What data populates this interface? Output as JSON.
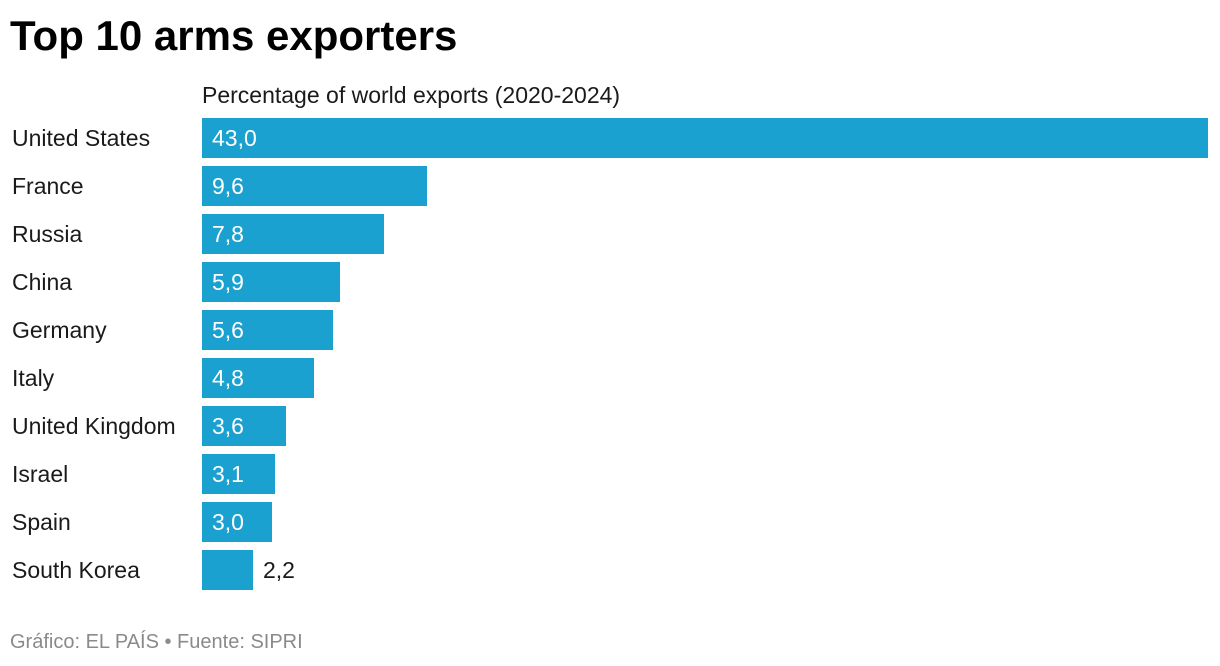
{
  "title": "Top 10 arms exporters",
  "subtitle": "Percentage of world exports (2020-2024)",
  "footer": "Gráfico: EL PAÍS • Fuente: SIPRI",
  "colors": {
    "bar": "#1aa1d0",
    "value_inside": "#ffffff",
    "value_outside": "#1a1a1a"
  },
  "chart_data": {
    "type": "bar",
    "orientation": "horizontal",
    "categories": [
      "United States",
      "France",
      "Russia",
      "China",
      "Germany",
      "Italy",
      "United Kingdom",
      "Israel",
      "Spain",
      "South Korea"
    ],
    "values": [
      43.0,
      9.6,
      7.8,
      5.9,
      5.6,
      4.8,
      3.6,
      3.1,
      3.0,
      2.2
    ],
    "value_labels": [
      "43,0",
      "9,6",
      "7,8",
      "5,9",
      "5,6",
      "4,8",
      "3,6",
      "3,1",
      "3,0",
      "2,2"
    ],
    "title": "Top 10 arms exporters",
    "subtitle": "Percentage of world exports (2020-2024)",
    "xlim": [
      0,
      43.0
    ],
    "grid": false,
    "legend": "none"
  }
}
